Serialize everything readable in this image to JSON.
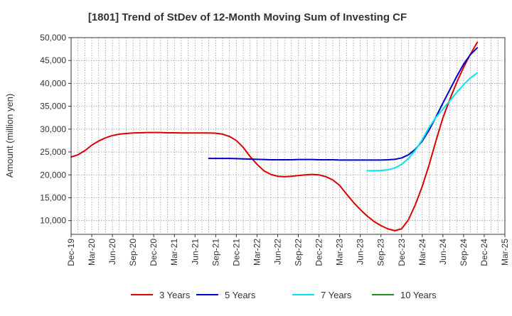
{
  "chart_data": {
    "type": "line",
    "title": "[1801]  Trend of StDev of 12-Month Moving Sum of Investing CF",
    "ylabel": "Amount (million yen)",
    "xlabel": "",
    "ylim": [
      7000,
      50000
    ],
    "y_ticks": [
      10000,
      15000,
      20000,
      25000,
      30000,
      35000,
      40000,
      45000,
      50000
    ],
    "y_tick_labels": [
      "10,000",
      "15,000",
      "20,000",
      "25,000",
      "30,000",
      "35,000",
      "40,000",
      "45,000",
      "50,000"
    ],
    "x_ticks": [
      "Dec-19",
      "Mar-20",
      "Jun-20",
      "Sep-20",
      "Dec-20",
      "Mar-21",
      "Jun-21",
      "Sep-21",
      "Dec-21",
      "Mar-22",
      "Jun-22",
      "Sep-22",
      "Dec-22",
      "Mar-23",
      "Jun-23",
      "Sep-23",
      "Dec-23",
      "Mar-24",
      "Jun-24",
      "Sep-24",
      "Dec-24",
      "Mar-25"
    ],
    "x_months": [
      "2019-12",
      "2020-01",
      "2020-02",
      "2020-03",
      "2020-04",
      "2020-05",
      "2020-06",
      "2020-07",
      "2020-08",
      "2020-09",
      "2020-10",
      "2020-11",
      "2020-12",
      "2021-01",
      "2021-02",
      "2021-03",
      "2021-04",
      "2021-05",
      "2021-06",
      "2021-07",
      "2021-08",
      "2021-09",
      "2021-10",
      "2021-11",
      "2021-12",
      "2022-01",
      "2022-02",
      "2022-03",
      "2022-04",
      "2022-05",
      "2022-06",
      "2022-07",
      "2022-08",
      "2022-09",
      "2022-10",
      "2022-11",
      "2022-12",
      "2023-01",
      "2023-02",
      "2023-03",
      "2023-04",
      "2023-05",
      "2023-06",
      "2023-07",
      "2023-08",
      "2023-09",
      "2023-10",
      "2023-11",
      "2023-12",
      "2024-01",
      "2024-02",
      "2024-03",
      "2024-04",
      "2024-05",
      "2024-06",
      "2024-07",
      "2024-08",
      "2024-09",
      "2024-10",
      "2024-11",
      "2024-12",
      "2025-01",
      "2025-02",
      "2025-03"
    ],
    "grid": true,
    "legend_position": "bottom",
    "series": [
      {
        "name": "3 Years",
        "color": "#dd0000",
        "points": [
          [
            "2019-12",
            23900
          ],
          [
            "2020-01",
            24400
          ],
          [
            "2020-02",
            25300
          ],
          [
            "2020-03",
            26500
          ],
          [
            "2020-04",
            27400
          ],
          [
            "2020-05",
            28100
          ],
          [
            "2020-06",
            28600
          ],
          [
            "2020-07",
            28900
          ],
          [
            "2020-08",
            29050
          ],
          [
            "2020-09",
            29150
          ],
          [
            "2020-10",
            29200
          ],
          [
            "2020-11",
            29250
          ],
          [
            "2020-12",
            29250
          ],
          [
            "2021-01",
            29250
          ],
          [
            "2021-02",
            29200
          ],
          [
            "2021-03",
            29200
          ],
          [
            "2021-04",
            29150
          ],
          [
            "2021-05",
            29150
          ],
          [
            "2021-06",
            29150
          ],
          [
            "2021-07",
            29150
          ],
          [
            "2021-08",
            29150
          ],
          [
            "2021-09",
            29100
          ],
          [
            "2021-10",
            28900
          ],
          [
            "2021-11",
            28400
          ],
          [
            "2021-12",
            27500
          ],
          [
            "2022-01",
            26000
          ],
          [
            "2022-02",
            24000
          ],
          [
            "2022-03",
            22300
          ],
          [
            "2022-04",
            20900
          ],
          [
            "2022-05",
            20100
          ],
          [
            "2022-06",
            19700
          ],
          [
            "2022-07",
            19600
          ],
          [
            "2022-08",
            19700
          ],
          [
            "2022-09",
            19850
          ],
          [
            "2022-10",
            20000
          ],
          [
            "2022-11",
            20100
          ],
          [
            "2022-12",
            20000
          ],
          [
            "2023-01",
            19600
          ],
          [
            "2023-02",
            18900
          ],
          [
            "2023-03",
            17700
          ],
          [
            "2023-04",
            15800
          ],
          [
            "2023-05",
            14000
          ],
          [
            "2023-06",
            12400
          ],
          [
            "2023-07",
            11000
          ],
          [
            "2023-08",
            9800
          ],
          [
            "2023-09",
            8900
          ],
          [
            "2023-10",
            8200
          ],
          [
            "2023-11",
            7800
          ],
          [
            "2023-12",
            8200
          ],
          [
            "2024-01",
            10200
          ],
          [
            "2024-02",
            13500
          ],
          [
            "2024-03",
            17500
          ],
          [
            "2024-04",
            22200
          ],
          [
            "2024-05",
            27500
          ],
          [
            "2024-06",
            32500
          ],
          [
            "2024-07",
            36500
          ],
          [
            "2024-08",
            40200
          ],
          [
            "2024-09",
            43500
          ],
          [
            "2024-10",
            46400
          ],
          [
            "2024-11",
            49000
          ]
        ]
      },
      {
        "name": "5 Years",
        "color": "#0000cc",
        "points": [
          [
            "2021-08",
            23600
          ],
          [
            "2021-09",
            23600
          ],
          [
            "2021-10",
            23600
          ],
          [
            "2021-11",
            23600
          ],
          [
            "2021-12",
            23550
          ],
          [
            "2022-01",
            23500
          ],
          [
            "2022-02",
            23450
          ],
          [
            "2022-03",
            23400
          ],
          [
            "2022-04",
            23350
          ],
          [
            "2022-05",
            23300
          ],
          [
            "2022-06",
            23300
          ],
          [
            "2022-07",
            23300
          ],
          [
            "2022-08",
            23300
          ],
          [
            "2022-09",
            23350
          ],
          [
            "2022-10",
            23350
          ],
          [
            "2022-11",
            23350
          ],
          [
            "2022-12",
            23300
          ],
          [
            "2023-01",
            23300
          ],
          [
            "2023-02",
            23300
          ],
          [
            "2023-03",
            23250
          ],
          [
            "2023-04",
            23250
          ],
          [
            "2023-05",
            23250
          ],
          [
            "2023-06",
            23250
          ],
          [
            "2023-07",
            23250
          ],
          [
            "2023-08",
            23250
          ],
          [
            "2023-09",
            23250
          ],
          [
            "2023-10",
            23300
          ],
          [
            "2023-11",
            23400
          ],
          [
            "2023-12",
            23700
          ],
          [
            "2024-01",
            24400
          ],
          [
            "2024-02",
            25600
          ],
          [
            "2024-03",
            27400
          ],
          [
            "2024-04",
            29800
          ],
          [
            "2024-05",
            32700
          ],
          [
            "2024-06",
            35700
          ],
          [
            "2024-07",
            38600
          ],
          [
            "2024-08",
            41500
          ],
          [
            "2024-09",
            44200
          ],
          [
            "2024-10",
            46300
          ],
          [
            "2024-11",
            47800
          ]
        ]
      },
      {
        "name": "7 Years",
        "color": "#00e5ee",
        "points": [
          [
            "2023-07",
            20900
          ],
          [
            "2023-08",
            20900
          ],
          [
            "2023-09",
            20950
          ],
          [
            "2023-10",
            21100
          ],
          [
            "2023-11",
            21500
          ],
          [
            "2023-12",
            22300
          ],
          [
            "2024-01",
            23600
          ],
          [
            "2024-02",
            25400
          ],
          [
            "2024-03",
            27700
          ],
          [
            "2024-04",
            30400
          ],
          [
            "2024-05",
            32600
          ],
          [
            "2024-06",
            34400
          ],
          [
            "2024-07",
            36200
          ],
          [
            "2024-08",
            38000
          ],
          [
            "2024-09",
            39700
          ],
          [
            "2024-10",
            41200
          ],
          [
            "2024-11",
            42300
          ]
        ]
      },
      {
        "name": "10 Years",
        "color": "#228b22",
        "points": []
      }
    ]
  }
}
